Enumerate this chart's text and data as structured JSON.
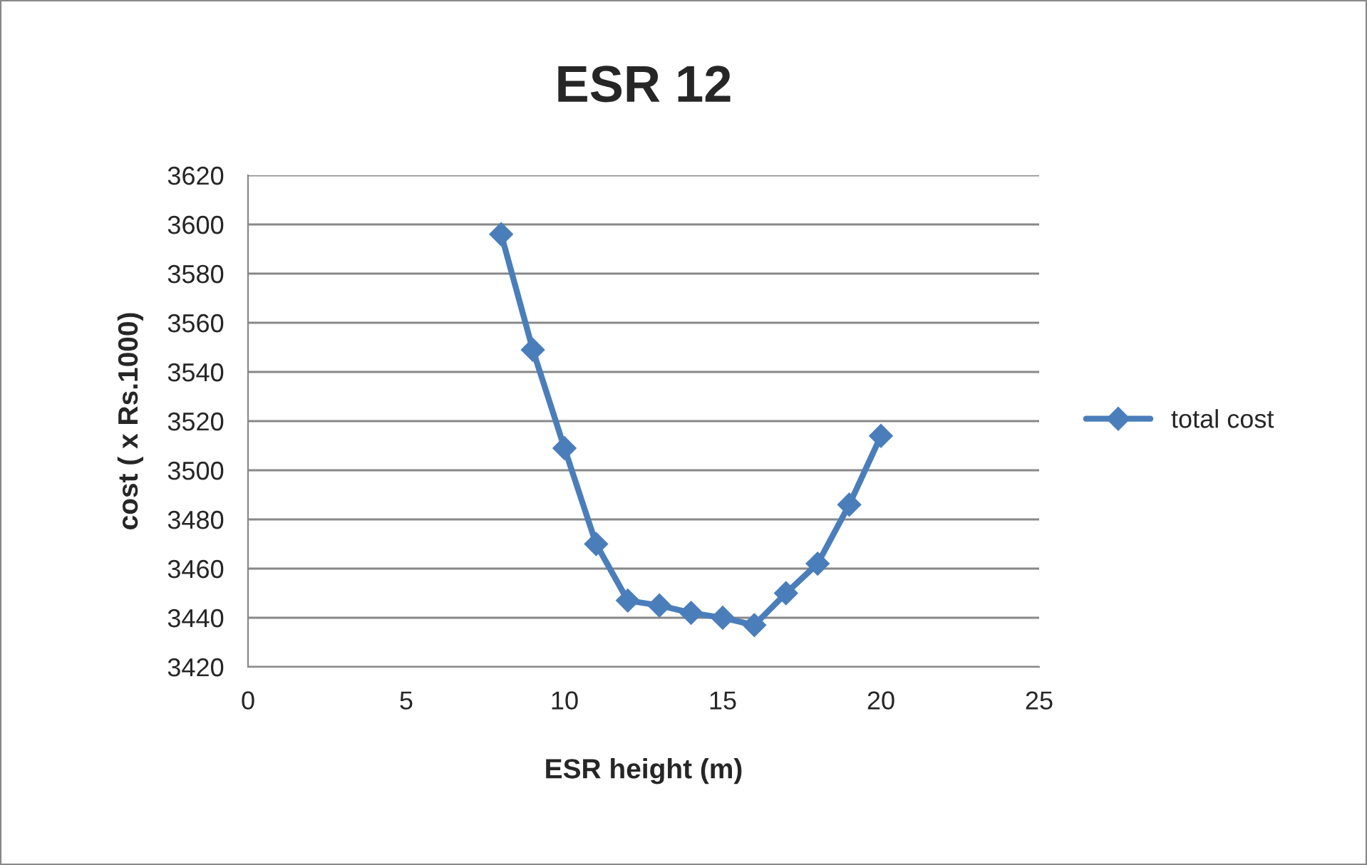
{
  "chart_data": {
    "type": "line",
    "title": "ESR 12",
    "xlabel": "ESR height (m)",
    "ylabel": "cost ( x Rs.1000)",
    "series": [
      {
        "name": "total cost",
        "color": "#4a7ebb",
        "x": [
          8,
          9,
          10,
          11,
          12,
          13,
          14,
          15,
          16,
          17,
          18,
          19,
          20
        ],
        "values": [
          3596,
          3549,
          3509,
          3470,
          3447,
          3445,
          3442,
          3440,
          3437,
          3450,
          3462,
          3486,
          3514
        ]
      }
    ],
    "xlim": [
      0,
      25
    ],
    "xticks": [
      0,
      5,
      10,
      15,
      20,
      25
    ],
    "ylim": [
      3420,
      3620
    ],
    "yticks": [
      3420,
      3440,
      3460,
      3480,
      3500,
      3520,
      3540,
      3560,
      3580,
      3600,
      3620
    ],
    "grid": "y",
    "legend": "right",
    "marker": "diamond",
    "line_style": "solid"
  }
}
